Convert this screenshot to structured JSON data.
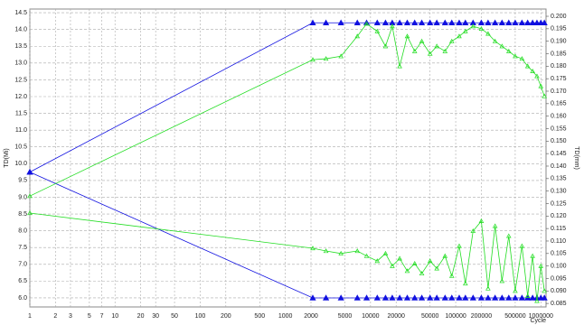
{
  "chart_data": {
    "type": "line",
    "ylabel": "TD(Mi)",
    "y2label": "TD(mm)",
    "xlabel": "Cycle",
    "xlog": true,
    "grid": true,
    "xlim": [
      1,
      1150000
    ],
    "xticks": [
      1,
      2,
      3,
      5,
      7,
      10,
      20,
      30,
      50,
      100,
      200,
      500,
      1000,
      2000,
      5000,
      10000,
      20000,
      50000,
      100000,
      200000,
      500000,
      1000000
    ],
    "ylim": [
      5.73,
      14.61
    ],
    "yticks": [
      {
        "value": 6,
        "label": "6.0"
      },
      {
        "value": 6.5,
        "label": "6.5"
      },
      {
        "value": 7,
        "label": "7.0"
      },
      {
        "value": 7.5,
        "label": "7.5"
      },
      {
        "value": 8,
        "label": "8.0"
      },
      {
        "value": 8.5,
        "label": "8.5"
      },
      {
        "value": 9,
        "label": "9.0"
      },
      {
        "value": 9.5,
        "label": "9.5"
      },
      {
        "value": 10,
        "label": "10.0"
      },
      {
        "value": 10.5,
        "label": "10.5"
      },
      {
        "value": 11,
        "label": "11.0"
      },
      {
        "value": 11.5,
        "label": "11.5"
      },
      {
        "value": 12,
        "label": "12.0"
      },
      {
        "value": 12.5,
        "label": "12.5"
      },
      {
        "value": 13,
        "label": "13.0"
      },
      {
        "value": 13.5,
        "label": "13.5"
      },
      {
        "value": 14,
        "label": "14.0"
      },
      {
        "value": 14.5,
        "label": "14.5"
      }
    ],
    "y2lim": [
      0.0836,
      0.2029
    ],
    "y2ticks": [
      0.085,
      {
        "value": 0.09,
        "label": "0.090"
      },
      0.095,
      {
        "value": 0.1,
        "label": "0.100"
      },
      0.105,
      {
        "value": 0.11,
        "label": "0.110"
      },
      0.115,
      {
        "value": 0.12,
        "label": "0.120"
      },
      0.125,
      {
        "value": 0.13,
        "label": "0.130"
      },
      0.135,
      {
        "value": 0.14,
        "label": "0.140"
      },
      0.145,
      {
        "value": 0.15,
        "label": "0.150"
      },
      0.155,
      {
        "value": 0.16,
        "label": "0.160"
      },
      0.165,
      {
        "value": 0.17,
        "label": "0.170"
      },
      0.175,
      {
        "value": 0.18,
        "label": "0.180"
      },
      0.185,
      {
        "value": 0.19,
        "label": "0.190"
      },
      0.195,
      {
        "value": 0.2,
        "label": "0.200"
      }
    ],
    "x": [
      1,
      2100,
      3000,
      4500,
      7000,
      9000,
      12000,
      15000,
      18000,
      22000,
      27000,
      33000,
      40000,
      50000,
      60000,
      75000,
      90000,
      110000,
      130000,
      160000,
      200000,
      240000,
      290000,
      350000,
      420000,
      500000,
      600000,
      700000,
      800000,
      900000,
      1000000,
      1100000
    ],
    "series": [
      {
        "color": "#1010e0",
        "marker": "filled",
        "values": [
          9.75,
          14.2,
          14.2,
          14.2,
          14.2,
          14.2,
          14.2,
          14.2,
          14.2,
          14.2,
          14.2,
          14.2,
          14.2,
          14.2,
          14.2,
          14.2,
          14.2,
          14.2,
          14.2,
          14.2,
          14.2,
          14.2,
          14.2,
          14.2,
          14.2,
          14.2,
          14.2,
          14.2,
          14.2,
          14.2,
          14.2,
          14.2
        ]
      },
      {
        "color": "#1010e0",
        "marker": "filled",
        "values": [
          9.75,
          6.0,
          6.0,
          6.0,
          6.0,
          6.0,
          6.0,
          6.0,
          6.0,
          6.0,
          6.0,
          6.0,
          6.0,
          6.0,
          6.0,
          6.0,
          6.0,
          6.0,
          6.0,
          6.0,
          6.0,
          6.0,
          6.0,
          6.0,
          6.0,
          6.0,
          6.0,
          6.0,
          6.0,
          6.0,
          6.0,
          6.0
        ]
      },
      {
        "color": "#22dd22",
        "marker": "hollow",
        "axis": "y2",
        "values": [
          0.128,
          0.1826,
          0.183,
          0.184,
          0.192,
          0.197,
          0.194,
          0.188,
          0.196,
          0.18,
          0.192,
          0.186,
          0.19,
          0.185,
          0.188,
          0.186,
          0.19,
          0.192,
          0.194,
          0.196,
          0.195,
          0.193,
          0.19,
          0.188,
          0.186,
          0.184,
          0.183,
          0.18,
          0.178,
          0.176,
          0.172,
          0.168
        ]
      },
      {
        "color": "#22dd22",
        "marker": "hollow",
        "axis": "y2",
        "values": [
          0.1212,
          0.1071,
          0.106,
          0.105,
          0.106,
          0.104,
          0.102,
          0.105,
          0.1,
          0.103,
          0.098,
          0.101,
          0.097,
          0.102,
          0.099,
          0.104,
          0.096,
          0.108,
          0.093,
          0.114,
          0.118,
          0.091,
          0.116,
          0.094,
          0.112,
          0.09,
          0.108,
          0.088,
          0.104,
          0.086,
          0.1,
          0.09
        ]
      }
    ]
  }
}
